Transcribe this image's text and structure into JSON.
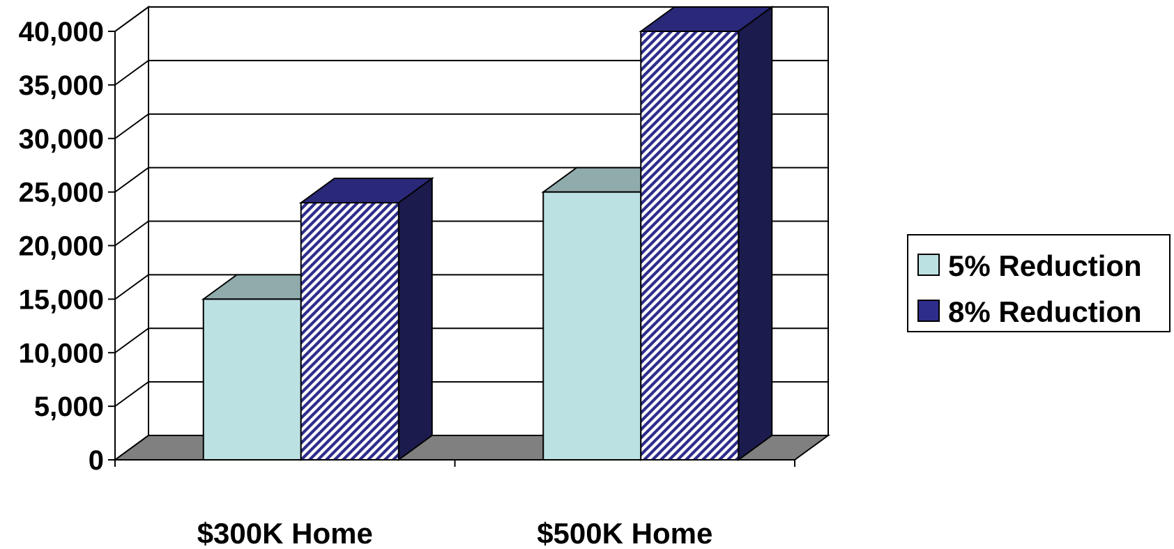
{
  "chart_data": {
    "type": "bar",
    "style": "3d-clustered-column",
    "categories": [
      "$300K Home",
      "$500K Home"
    ],
    "series": [
      {
        "name": "5% Reduction",
        "values": [
          15000,
          25000
        ],
        "color": "#BCE1E3",
        "top_color": "#90ABAB",
        "pattern": "solid"
      },
      {
        "name": "8% Reduction",
        "values": [
          24000,
          40000
        ],
        "color": "#2E2D8C",
        "top_color": "#2A2878",
        "side_color": "#1C1B4E",
        "pattern": "diagonal-stripes"
      }
    ],
    "ylim": [
      0,
      40000
    ],
    "yticks": [
      "0",
      "5,000",
      "10,000",
      "15,000",
      "20,000",
      "25,000",
      "30,000",
      "35,000",
      "40,000"
    ],
    "title": "",
    "xlabel": "",
    "ylabel": "",
    "grid": true,
    "legend_position": "right",
    "floor_color": "#808080"
  }
}
